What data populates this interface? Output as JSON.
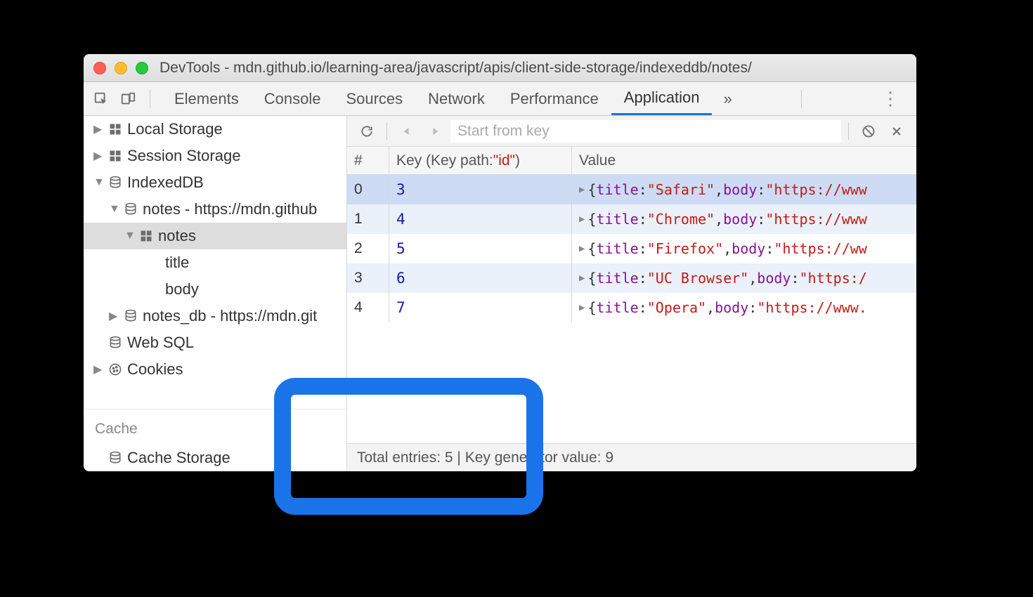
{
  "window": {
    "title": "DevTools - mdn.github.io/learning-area/javascript/apis/client-side-storage/indexeddb/notes/"
  },
  "tabs": {
    "items": [
      "Elements",
      "Console",
      "Sources",
      "Network",
      "Performance",
      "Application"
    ],
    "active": "Application",
    "overflow": "»"
  },
  "sidebar": {
    "items": [
      {
        "indent": 1,
        "disc": "▶",
        "icon": "grid",
        "label": "Local Storage"
      },
      {
        "indent": 1,
        "disc": "▶",
        "icon": "grid",
        "label": "Session Storage"
      },
      {
        "indent": 1,
        "disc": "▼",
        "icon": "db",
        "label": "IndexedDB"
      },
      {
        "indent": 2,
        "disc": "▼",
        "icon": "db",
        "label": "notes - https://mdn.github"
      },
      {
        "indent": 3,
        "disc": "▼",
        "icon": "grid",
        "label": "notes",
        "selected": true
      },
      {
        "indent": 4,
        "disc": "",
        "icon": "",
        "label": "title"
      },
      {
        "indent": 4,
        "disc": "",
        "icon": "",
        "label": "body"
      },
      {
        "indent": 2,
        "disc": "▶",
        "icon": "db",
        "label": "notes_db - https://mdn.git"
      },
      {
        "indent": 1,
        "disc": "",
        "icon": "db",
        "label": "Web SQL"
      },
      {
        "indent": 1,
        "disc": "▶",
        "icon": "cookie",
        "label": "Cookies"
      }
    ],
    "cache_header": "Cache",
    "cache_items": [
      {
        "indent": 1,
        "disc": "",
        "icon": "db",
        "label": "Cache Storage"
      }
    ]
  },
  "toolbar": {
    "search_placeholder": "Start from key"
  },
  "table": {
    "headers": {
      "idx": "#",
      "key_prefix": "Key (Key path: ",
      "key_path": "\"id\"",
      "key_suffix": ")",
      "value": "Value"
    },
    "rows": [
      {
        "idx": "0",
        "key": "3",
        "title": "Safari",
        "body": "https://www",
        "selected": true
      },
      {
        "idx": "1",
        "key": "4",
        "title": "Chrome",
        "body": "https://www"
      },
      {
        "idx": "2",
        "key": "5",
        "title": "Firefox",
        "body": "https://ww"
      },
      {
        "idx": "3",
        "key": "6",
        "title": "UC Browser",
        "body": "https:/"
      },
      {
        "idx": "4",
        "key": "7",
        "title": "Opera",
        "body": "https://www."
      }
    ]
  },
  "status": {
    "text": "Total entries: 5 | Key generator value: 9"
  }
}
